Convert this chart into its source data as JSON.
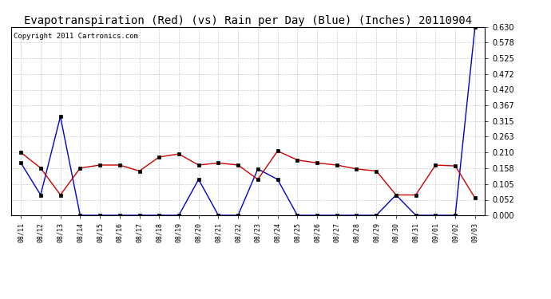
{
  "title": "Evapotranspiration (Red) (vs) Rain per Day (Blue) (Inches) 20110904",
  "copyright": "Copyright 2011 Cartronics.com",
  "labels": [
    "08/11",
    "08/12",
    "08/13",
    "08/14",
    "08/15",
    "08/16",
    "08/17",
    "08/18",
    "08/19",
    "08/20",
    "08/21",
    "08/22",
    "08/23",
    "08/24",
    "08/25",
    "08/26",
    "08/27",
    "08/28",
    "08/29",
    "08/30",
    "08/31",
    "09/01",
    "09/02",
    "09/03"
  ],
  "red_values": [
    0.21,
    0.158,
    0.068,
    0.158,
    0.168,
    0.168,
    0.148,
    0.195,
    0.205,
    0.168,
    0.175,
    0.168,
    0.12,
    0.215,
    0.185,
    0.175,
    0.168,
    0.155,
    0.148,
    0.068,
    0.068,
    0.168,
    0.165,
    0.058
  ],
  "blue_values": [
    0.175,
    0.068,
    0.33,
    0.0,
    0.0,
    0.0,
    0.0,
    0.0,
    0.0,
    0.12,
    0.0,
    0.0,
    0.155,
    0.12,
    0.0,
    0.0,
    0.0,
    0.0,
    0.0,
    0.068,
    0.0,
    0.0,
    0.0,
    0.63
  ],
  "ylim": [
    0.0,
    0.63
  ],
  "yticks": [
    0.0,
    0.052,
    0.105,
    0.158,
    0.21,
    0.263,
    0.315,
    0.367,
    0.42,
    0.472,
    0.525,
    0.578,
    0.63
  ],
  "bg_color": "#ffffff",
  "grid_color": "#cccccc",
  "red_color": "#cc0000",
  "blue_color": "#0000cc",
  "title_fontsize": 10,
  "copyright_fontsize": 6.5
}
